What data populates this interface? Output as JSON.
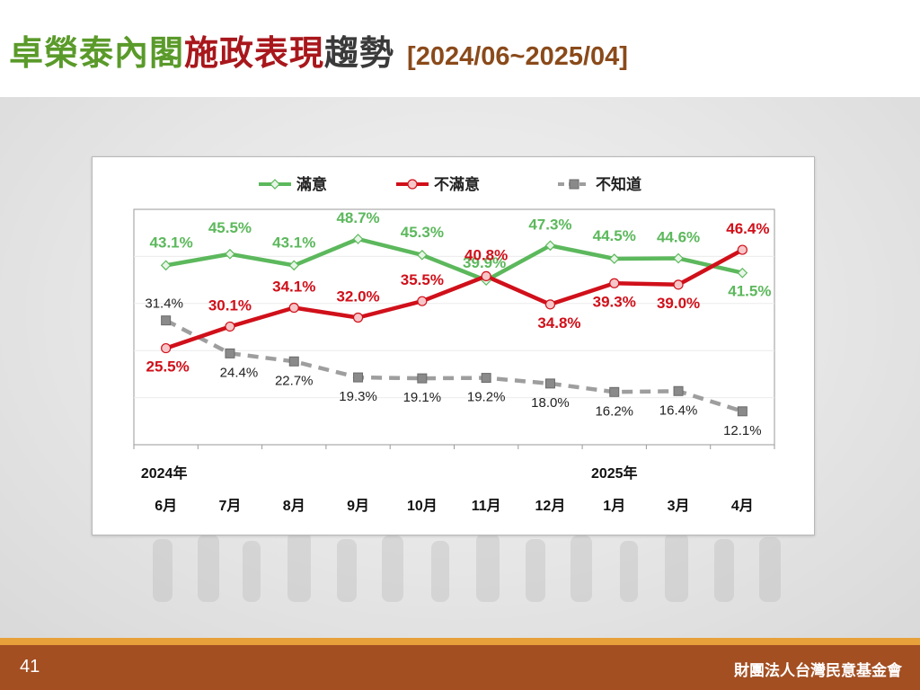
{
  "title": {
    "part1": "卓榮泰內閣",
    "part2": "施政表現",
    "part3": "趨勢",
    "range": "[2024/06~2025/04]"
  },
  "footer": {
    "page_number": "41",
    "organization": "財團法人台灣民意基金會"
  },
  "colors": {
    "satisfied": "#5cb85c",
    "dissatisfied": "#d0101a",
    "unknown": "#9e9e9e",
    "title_green": "#5a9a2a",
    "title_red": "#a8171c",
    "footer_brown": "#a34f22"
  },
  "chart_data": {
    "type": "line",
    "categories": [
      "6月",
      "7月",
      "8月",
      "9月",
      "10月",
      "11月",
      "12月",
      "1月",
      "3月",
      "4月"
    ],
    "year_labels": [
      {
        "index": 0,
        "label": "2024年"
      },
      {
        "index": 7,
        "label": "2025年"
      }
    ],
    "series": [
      {
        "name": "滿意",
        "color": "#5cb85c",
        "dashed": false,
        "values": [
          43.1,
          45.5,
          43.1,
          48.7,
          45.3,
          39.9,
          47.3,
          44.5,
          44.6,
          41.5
        ],
        "labels": [
          "43.1%",
          "45.5%",
          "43.1%",
          "48.7%",
          "45.3%",
          "39.9%",
          "47.3%",
          "44.5%",
          "44.6%",
          "41.5%"
        ]
      },
      {
        "name": "不滿意",
        "color": "#d0101a",
        "dashed": false,
        "values": [
          25.5,
          30.1,
          34.1,
          32.0,
          35.5,
          40.8,
          34.8,
          39.3,
          39.0,
          46.4
        ],
        "labels": [
          "25.5%",
          "30.1%",
          "34.1%",
          "32.0%",
          "35.5%",
          "40.8%",
          "34.8%",
          "39.3%",
          "39.0%",
          "46.4%"
        ]
      },
      {
        "name": "不知道",
        "color": "#9e9e9e",
        "dashed": true,
        "values": [
          31.4,
          24.4,
          22.7,
          19.3,
          19.1,
          19.2,
          18.0,
          16.2,
          16.4,
          12.1
        ],
        "labels": [
          "31.4%",
          "24.4%",
          "22.7%",
          "19.3%",
          "19.1%",
          "19.2%",
          "18.0%",
          "16.2%",
          "16.4%",
          "12.1%"
        ]
      }
    ],
    "legend": "top",
    "grid": true
  }
}
